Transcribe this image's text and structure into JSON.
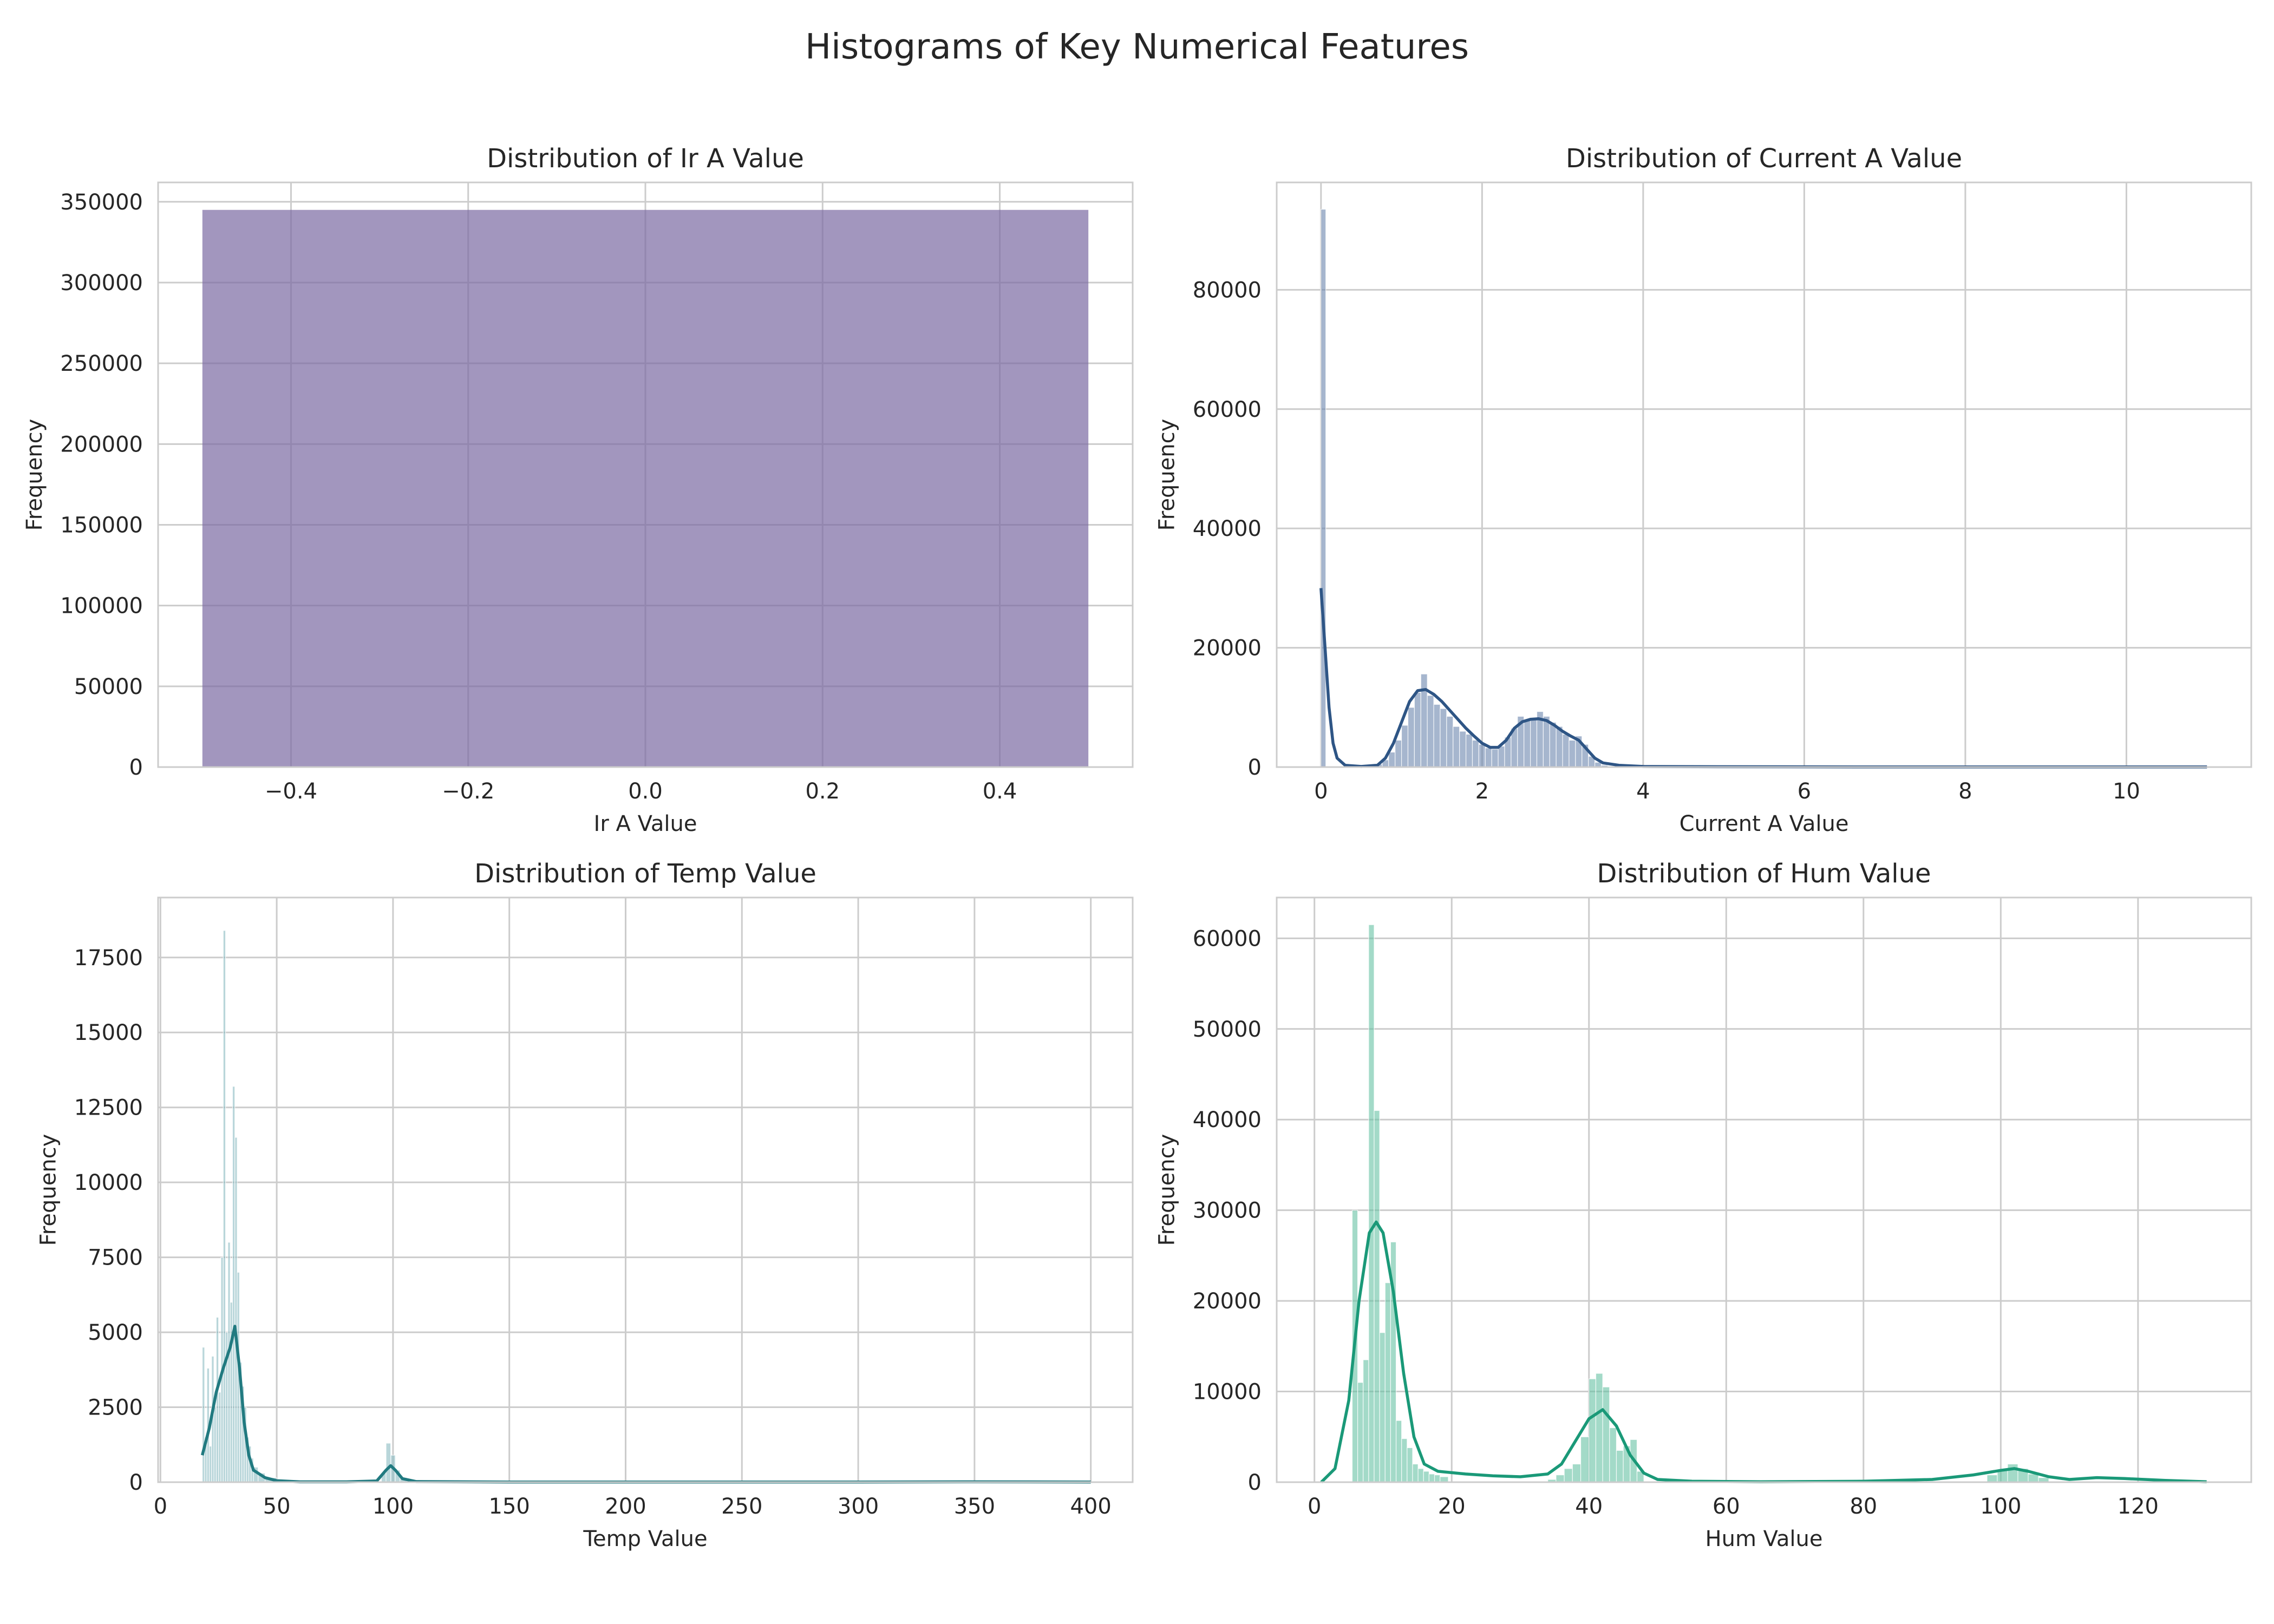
{
  "figure_title": "Histograms of Key Numerical Features",
  "chart_data": [
    {
      "type": "bar",
      "title": "Distribution of Ir A Value",
      "xlabel": "Ir A Value",
      "ylabel": "Frequency",
      "xlim": [
        -0.55,
        0.55
      ],
      "ylim": [
        0,
        362000
      ],
      "xticks": [
        -0.4,
        -0.2,
        0.0,
        0.2,
        0.4
      ],
      "xtick_labels": [
        "−0.4",
        "−0.2",
        "0.0",
        "0.2",
        "0.4"
      ],
      "yticks": [
        0,
        50000,
        100000,
        150000,
        200000,
        250000,
        300000,
        350000
      ],
      "ytick_labels": [
        "0",
        "50000",
        "100000",
        "150000",
        "200000",
        "250000",
        "300000",
        "350000"
      ],
      "grid": true,
      "bar_color": "#7b6aa3",
      "bins": [
        {
          "x0": -0.5,
          "x1": 0.5,
          "count": 345000
        }
      ],
      "kde": []
    },
    {
      "type": "bar",
      "title": "Distribution of Current A Value",
      "xlabel": "Current A Value",
      "ylabel": "Frequency",
      "xlim": [
        -0.55,
        11.55
      ],
      "ylim": [
        0,
        98000
      ],
      "xticks": [
        0,
        2,
        4,
        6,
        8,
        10
      ],
      "xtick_labels": [
        "0",
        "2",
        "4",
        "6",
        "8",
        "10"
      ],
      "yticks": [
        0,
        20000,
        40000,
        60000,
        80000
      ],
      "ytick_labels": [
        "0",
        "20000",
        "40000",
        "60000",
        "80000"
      ],
      "grid": true,
      "bar_color": "#6b86ae",
      "kde_color": "#2e5585",
      "bins": [
        {
          "x0": 0.0,
          "x1": 0.06,
          "count": 93500
        },
        {
          "x0": 0.6,
          "x1": 0.68,
          "count": 200
        },
        {
          "x0": 0.68,
          "x1": 0.76,
          "count": 500
        },
        {
          "x0": 0.76,
          "x1": 0.84,
          "count": 1200
        },
        {
          "x0": 0.84,
          "x1": 0.92,
          "count": 2500
        },
        {
          "x0": 0.92,
          "x1": 1.0,
          "count": 4500
        },
        {
          "x0": 1.0,
          "x1": 1.08,
          "count": 7000
        },
        {
          "x0": 1.08,
          "x1": 1.16,
          "count": 10000
        },
        {
          "x0": 1.16,
          "x1": 1.24,
          "count": 12500
        },
        {
          "x0": 1.24,
          "x1": 1.32,
          "count": 15600
        },
        {
          "x0": 1.32,
          "x1": 1.4,
          "count": 12000
        },
        {
          "x0": 1.4,
          "x1": 1.48,
          "count": 10500
        },
        {
          "x0": 1.48,
          "x1": 1.56,
          "count": 9800
        },
        {
          "x0": 1.56,
          "x1": 1.64,
          "count": 8500
        },
        {
          "x0": 1.64,
          "x1": 1.72,
          "count": 6800
        },
        {
          "x0": 1.72,
          "x1": 1.8,
          "count": 6000
        },
        {
          "x0": 1.8,
          "x1": 1.88,
          "count": 5500
        },
        {
          "x0": 1.88,
          "x1": 1.96,
          "count": 4500
        },
        {
          "x0": 1.96,
          "x1": 2.04,
          "count": 3800
        },
        {
          "x0": 2.04,
          "x1": 2.12,
          "count": 3200
        },
        {
          "x0": 2.12,
          "x1": 2.2,
          "count": 3000
        },
        {
          "x0": 2.2,
          "x1": 2.28,
          "count": 3500
        },
        {
          "x0": 2.28,
          "x1": 2.36,
          "count": 5000
        },
        {
          "x0": 2.36,
          "x1": 2.44,
          "count": 6500
        },
        {
          "x0": 2.44,
          "x1": 2.52,
          "count": 8500
        },
        {
          "x0": 2.52,
          "x1": 2.6,
          "count": 8000
        },
        {
          "x0": 2.6,
          "x1": 2.68,
          "count": 8200
        },
        {
          "x0": 2.68,
          "x1": 2.76,
          "count": 9300
        },
        {
          "x0": 2.76,
          "x1": 2.84,
          "count": 8500
        },
        {
          "x0": 2.84,
          "x1": 2.92,
          "count": 7500
        },
        {
          "x0": 2.92,
          "x1": 3.0,
          "count": 6800
        },
        {
          "x0": 3.0,
          "x1": 3.08,
          "count": 5500
        },
        {
          "x0": 3.08,
          "x1": 3.16,
          "count": 4500
        },
        {
          "x0": 3.16,
          "x1": 3.24,
          "count": 5200
        },
        {
          "x0": 3.24,
          "x1": 3.32,
          "count": 3800
        },
        {
          "x0": 3.32,
          "x1": 3.4,
          "count": 1800
        },
        {
          "x0": 3.4,
          "x1": 3.48,
          "count": 800
        },
        {
          "x0": 3.48,
          "x1": 3.56,
          "count": 300
        }
      ],
      "kde": [
        [
          0.0,
          30000
        ],
        [
          0.05,
          20000
        ],
        [
          0.1,
          10000
        ],
        [
          0.15,
          4000
        ],
        [
          0.2,
          1500
        ],
        [
          0.3,
          300
        ],
        [
          0.5,
          100
        ],
        [
          0.7,
          300
        ],
        [
          0.8,
          1500
        ],
        [
          0.9,
          4000
        ],
        [
          1.0,
          7500
        ],
        [
          1.1,
          11000
        ],
        [
          1.2,
          12800
        ],
        [
          1.3,
          13000
        ],
        [
          1.4,
          12200
        ],
        [
          1.5,
          11000
        ],
        [
          1.6,
          9500
        ],
        [
          1.7,
          8000
        ],
        [
          1.8,
          6500
        ],
        [
          1.9,
          5200
        ],
        [
          2.0,
          4000
        ],
        [
          2.1,
          3300
        ],
        [
          2.2,
          3300
        ],
        [
          2.3,
          4500
        ],
        [
          2.4,
          6500
        ],
        [
          2.5,
          7600
        ],
        [
          2.6,
          8000
        ],
        [
          2.7,
          8100
        ],
        [
          2.8,
          7800
        ],
        [
          2.9,
          7000
        ],
        [
          3.0,
          6000
        ],
        [
          3.1,
          5200
        ],
        [
          3.2,
          4500
        ],
        [
          3.3,
          3000
        ],
        [
          3.4,
          1500
        ],
        [
          3.5,
          700
        ],
        [
          3.7,
          300
        ],
        [
          4.0,
          100
        ],
        [
          5.0,
          50
        ],
        [
          7.0,
          20
        ],
        [
          9.0,
          20
        ],
        [
          11.0,
          30
        ]
      ]
    },
    {
      "type": "bar",
      "title": "Distribution of Temp Value",
      "xlabel": "Temp Value",
      "ylabel": "Frequency",
      "xlim": [
        -1,
        418
      ],
      "ylim": [
        0,
        19500
      ],
      "xticks": [
        0,
        50,
        100,
        150,
        200,
        250,
        300,
        350,
        400
      ],
      "xtick_labels": [
        "0",
        "50",
        "100",
        "150",
        "200",
        "250",
        "300",
        "350",
        "400"
      ],
      "yticks": [
        0,
        2500,
        5000,
        7500,
        10000,
        12500,
        15000,
        17500
      ],
      "ytick_labels": [
        "0",
        "2500",
        "5000",
        "7500",
        "10000",
        "12500",
        "15000",
        "17500"
      ],
      "grid": true,
      "bar_color": "#8bbac2",
      "kde_color": "#217a80",
      "bins": [
        {
          "x0": 18,
          "x1": 19,
          "count": 4500
        },
        {
          "x0": 19,
          "x1": 20,
          "count": 1500
        },
        {
          "x0": 20,
          "x1": 21,
          "count": 3800
        },
        {
          "x0": 21,
          "x1": 22,
          "count": 1200
        },
        {
          "x0": 22,
          "x1": 23,
          "count": 4200
        },
        {
          "x0": 23,
          "x1": 24,
          "count": 2500
        },
        {
          "x0": 24,
          "x1": 25,
          "count": 5500
        },
        {
          "x0": 25,
          "x1": 26,
          "count": 3000
        },
        {
          "x0": 26,
          "x1": 27,
          "count": 7500
        },
        {
          "x0": 27,
          "x1": 28,
          "count": 18400
        },
        {
          "x0": 28,
          "x1": 29,
          "count": 5000
        },
        {
          "x0": 29,
          "x1": 30,
          "count": 8000
        },
        {
          "x0": 30,
          "x1": 31,
          "count": 6000
        },
        {
          "x0": 31,
          "x1": 32,
          "count": 13200
        },
        {
          "x0": 32,
          "x1": 33,
          "count": 11500
        },
        {
          "x0": 33,
          "x1": 34,
          "count": 7000
        },
        {
          "x0": 34,
          "x1": 35,
          "count": 4000
        },
        {
          "x0": 35,
          "x1": 36,
          "count": 3200
        },
        {
          "x0": 36,
          "x1": 37,
          "count": 2500
        },
        {
          "x0": 37,
          "x1": 38,
          "count": 1500
        },
        {
          "x0": 38,
          "x1": 39,
          "count": 1200
        },
        {
          "x0": 39,
          "x1": 40,
          "count": 800
        },
        {
          "x0": 40,
          "x1": 42,
          "count": 500
        },
        {
          "x0": 42,
          "x1": 45,
          "count": 300
        },
        {
          "x0": 45,
          "x1": 50,
          "count": 150
        },
        {
          "x0": 95,
          "x1": 97,
          "count": 300
        },
        {
          "x0": 97,
          "x1": 99,
          "count": 1300
        },
        {
          "x0": 99,
          "x1": 101,
          "count": 900
        },
        {
          "x0": 101,
          "x1": 103,
          "count": 400
        },
        {
          "x0": 103,
          "x1": 106,
          "count": 150
        }
      ],
      "kde": [
        [
          18,
          900
        ],
        [
          21,
          1800
        ],
        [
          24,
          3000
        ],
        [
          27,
          3800
        ],
        [
          30,
          4500
        ],
        [
          32,
          5200
        ],
        [
          34,
          3800
        ],
        [
          36,
          2000
        ],
        [
          38,
          900
        ],
        [
          40,
          400
        ],
        [
          45,
          150
        ],
        [
          50,
          50
        ],
        [
          60,
          10
        ],
        [
          80,
          10
        ],
        [
          93,
          40
        ],
        [
          97,
          400
        ],
        [
          99,
          550
        ],
        [
          101,
          400
        ],
        [
          104,
          120
        ],
        [
          110,
          20
        ],
        [
          150,
          5
        ],
        [
          200,
          5
        ],
        [
          250,
          5
        ],
        [
          300,
          5
        ],
        [
          350,
          10
        ],
        [
          400,
          5
        ]
      ]
    },
    {
      "type": "bar",
      "title": "Distribution of Hum Value",
      "xlabel": "Hum Value",
      "ylabel": "Frequency",
      "xlim": [
        -5.5,
        136.5
      ],
      "ylim": [
        0,
        64500
      ],
      "xticks": [
        0,
        20,
        40,
        60,
        80,
        100,
        120
      ],
      "xtick_labels": [
        "0",
        "20",
        "40",
        "60",
        "80",
        "100",
        "120"
      ],
      "yticks": [
        0,
        10000,
        20000,
        30000,
        40000,
        50000,
        60000
      ],
      "ytick_labels": [
        "0",
        "10000",
        "20000",
        "30000",
        "40000",
        "50000",
        "60000"
      ],
      "grid": true,
      "bar_color": "#66c2a4",
      "kde_color": "#1a9978",
      "bins": [
        {
          "x0": 5.5,
          "x1": 6.3,
          "count": 30000
        },
        {
          "x0": 6.3,
          "x1": 7.1,
          "count": 11000
        },
        {
          "x0": 7.1,
          "x1": 7.9,
          "count": 13500
        },
        {
          "x0": 7.9,
          "x1": 8.7,
          "count": 61500
        },
        {
          "x0": 8.7,
          "x1": 9.5,
          "count": 41000
        },
        {
          "x0": 9.5,
          "x1": 10.3,
          "count": 16500
        },
        {
          "x0": 10.3,
          "x1": 11.1,
          "count": 22000
        },
        {
          "x0": 11.1,
          "x1": 11.9,
          "count": 26500
        },
        {
          "x0": 11.9,
          "x1": 12.7,
          "count": 6800
        },
        {
          "x0": 12.7,
          "x1": 13.5,
          "count": 4800
        },
        {
          "x0": 13.5,
          "x1": 14.3,
          "count": 3800
        },
        {
          "x0": 14.3,
          "x1": 15.1,
          "count": 2000
        },
        {
          "x0": 15.1,
          "x1": 15.9,
          "count": 1500
        },
        {
          "x0": 15.9,
          "x1": 16.7,
          "count": 1200
        },
        {
          "x0": 16.7,
          "x1": 17.5,
          "count": 900
        },
        {
          "x0": 17.5,
          "x1": 18.3,
          "count": 800
        },
        {
          "x0": 18.3,
          "x1": 19.5,
          "count": 600
        },
        {
          "x0": 34.0,
          "x1": 35.2,
          "count": 300
        },
        {
          "x0": 35.2,
          "x1": 36.4,
          "count": 800
        },
        {
          "x0": 36.4,
          "x1": 37.6,
          "count": 1500
        },
        {
          "x0": 37.6,
          "x1": 38.8,
          "count": 2000
        },
        {
          "x0": 38.8,
          "x1": 40.0,
          "count": 5000
        },
        {
          "x0": 40.0,
          "x1": 41.0,
          "count": 11400
        },
        {
          "x0": 41.0,
          "x1": 42.0,
          "count": 12000
        },
        {
          "x0": 42.0,
          "x1": 43.0,
          "count": 10500
        },
        {
          "x0": 43.0,
          "x1": 44.0,
          "count": 6000
        },
        {
          "x0": 44.0,
          "x1": 45.0,
          "count": 3500
        },
        {
          "x0": 45.0,
          "x1": 46.0,
          "count": 4000
        },
        {
          "x0": 46.0,
          "x1": 47.0,
          "count": 4700
        },
        {
          "x0": 47.0,
          "x1": 48.0,
          "count": 1200
        },
        {
          "x0": 98.0,
          "x1": 99.5,
          "count": 800
        },
        {
          "x0": 99.5,
          "x1": 101.0,
          "count": 1300
        },
        {
          "x0": 101.0,
          "x1": 102.5,
          "count": 2000
        },
        {
          "x0": 102.5,
          "x1": 104.0,
          "count": 1500
        },
        {
          "x0": 104.0,
          "x1": 105.5,
          "count": 900
        },
        {
          "x0": 105.5,
          "x1": 107.0,
          "count": 500
        }
      ],
      "kde": [
        [
          1,
          0
        ],
        [
          3,
          1500
        ],
        [
          5,
          9000
        ],
        [
          6.5,
          20000
        ],
        [
          8,
          27500
        ],
        [
          9,
          28700
        ],
        [
          10,
          27500
        ],
        [
          11.5,
          21000
        ],
        [
          13,
          12000
        ],
        [
          14.5,
          5000
        ],
        [
          16,
          2000
        ],
        [
          18,
          1200
        ],
        [
          22,
          900
        ],
        [
          26,
          700
        ],
        [
          30,
          600
        ],
        [
          34,
          900
        ],
        [
          36,
          2000
        ],
        [
          38,
          4500
        ],
        [
          40,
          7000
        ],
        [
          42,
          8000
        ],
        [
          44,
          6200
        ],
        [
          46,
          3000
        ],
        [
          48,
          1000
        ],
        [
          50,
          300
        ],
        [
          55,
          100
        ],
        [
          65,
          50
        ],
        [
          80,
          100
        ],
        [
          90,
          300
        ],
        [
          96,
          800
        ],
        [
          100,
          1300
        ],
        [
          102,
          1500
        ],
        [
          104,
          1200
        ],
        [
          107,
          600
        ],
        [
          110,
          300
        ],
        [
          114,
          500
        ],
        [
          118,
          400
        ],
        [
          124,
          200
        ],
        [
          130,
          50
        ]
      ]
    }
  ]
}
